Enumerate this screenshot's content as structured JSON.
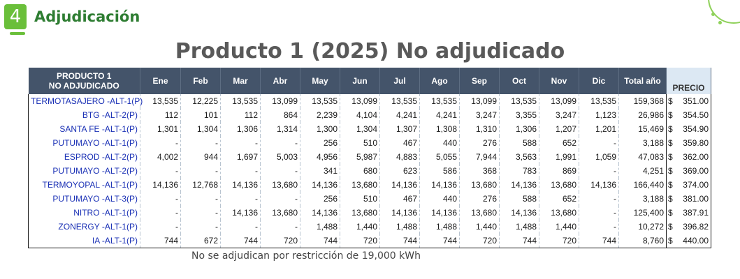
{
  "section": {
    "number": "4",
    "title": "Adjudicación"
  },
  "title": "Producto 1 (2025) No adjudicado",
  "table": {
    "header_product_line1": "PRODUCTO 1",
    "header_product_line2": "NO ADJUDICADO",
    "months": [
      "Ene",
      "Feb",
      "Mar",
      "Abr",
      "May",
      "Jun",
      "Jul",
      "Ago",
      "Sep",
      "Oct",
      "Nov",
      "Dic"
    ],
    "total_label": "Total año",
    "precio_label": "PRECIO",
    "rows": [
      {
        "name": "TERMOTASAJERO -ALT-1(P)",
        "values": [
          "13,535",
          "12,225",
          "13,535",
          "13,099",
          "13,535",
          "13,099",
          "13,535",
          "13,535",
          "13,099",
          "13,535",
          "13,099",
          "13,535"
        ],
        "total": "159,368",
        "currency": "$",
        "price": "351.00"
      },
      {
        "name": "BTG -ALT-2(P)",
        "values": [
          "112",
          "101",
          "112",
          "864",
          "2,239",
          "4,104",
          "4,241",
          "4,241",
          "3,247",
          "3,355",
          "3,247",
          "1,123"
        ],
        "total": "26,986",
        "currency": "$",
        "price": "354.50"
      },
      {
        "name": "SANTA FE -ALT-1(P)",
        "values": [
          "1,301",
          "1,304",
          "1,306",
          "1,314",
          "1,300",
          "1,304",
          "1,307",
          "1,308",
          "1,310",
          "1,306",
          "1,207",
          "1,201"
        ],
        "total": "15,469",
        "currency": "$",
        "price": "354.90"
      },
      {
        "name": "PUTUMAYO -ALT-1(P)",
        "values": [
          "-",
          "-",
          "-",
          "-",
          "256",
          "510",
          "467",
          "440",
          "276",
          "588",
          "652",
          "-"
        ],
        "total": "3,188",
        "currency": "$",
        "price": "359.80"
      },
      {
        "name": "ESPROD -ALT-2(P)",
        "values": [
          "4,002",
          "944",
          "1,697",
          "5,003",
          "4,956",
          "5,987",
          "4,883",
          "5,055",
          "7,944",
          "3,563",
          "1,991",
          "1,059"
        ],
        "total": "47,083",
        "currency": "$",
        "price": "362.00"
      },
      {
        "name": "PUTUMAYO -ALT-2(P)",
        "values": [
          "-",
          "-",
          "-",
          "-",
          "341",
          "680",
          "623",
          "586",
          "368",
          "783",
          "869",
          "-"
        ],
        "total": "4,251",
        "currency": "$",
        "price": "369.00"
      },
      {
        "name": "TERMOYOPAL -ALT-1(P)",
        "values": [
          "14,136",
          "12,768",
          "14,136",
          "13,680",
          "14,136",
          "13,680",
          "14,136",
          "14,136",
          "13,680",
          "14,136",
          "13,680",
          "14,136"
        ],
        "total": "166,440",
        "currency": "$",
        "price": "374.00"
      },
      {
        "name": "PUTUMAYO -ALT-3(P)",
        "values": [
          "-",
          "-",
          "-",
          "-",
          "256",
          "510",
          "467",
          "440",
          "276",
          "588",
          "652",
          "-"
        ],
        "total": "3,188",
        "currency": "$",
        "price": "381.00"
      },
      {
        "name": "NITRO -ALT-1(P)",
        "values": [
          "-",
          "-",
          "14,136",
          "13,680",
          "14,136",
          "13,680",
          "14,136",
          "14,136",
          "13,680",
          "14,136",
          "13,680",
          "-"
        ],
        "total": "125,400",
        "currency": "$",
        "price": "387.91"
      },
      {
        "name": "ZONERGY -ALT-1(P)",
        "values": [
          "-",
          "-",
          "-",
          "-",
          "1,488",
          "1,440",
          "1,488",
          "1,488",
          "1,440",
          "1,488",
          "1,440",
          "-"
        ],
        "total": "10,272",
        "currency": "$",
        "price": "396.82"
      },
      {
        "name": "IA -ALT-1(P)",
        "values": [
          "744",
          "672",
          "744",
          "720",
          "744",
          "720",
          "744",
          "744",
          "720",
          "744",
          "720",
          "744"
        ],
        "total": "8,760",
        "currency": "$",
        "price": "440.00"
      }
    ]
  },
  "footnote": "No se adjudican por restricción de 19,000 kWh",
  "colors": {
    "accent_green": "#6abf3a",
    "title_green": "#2e7d32",
    "header_bg": "#44546a",
    "name_blue": "#1a30b5"
  }
}
